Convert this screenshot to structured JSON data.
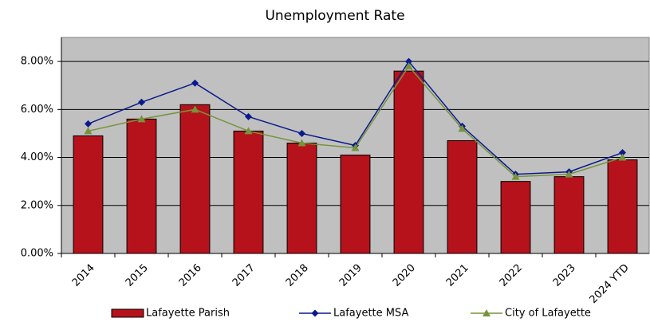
{
  "chart_data": {
    "type": "bar",
    "title": "Unemployment Rate",
    "categories": [
      "2014",
      "2015",
      "2016",
      "2017",
      "2018",
      "2019",
      "2020",
      "2021",
      "2022",
      "2023",
      "2024 YTD"
    ],
    "series": [
      {
        "name": "Lafayette Parish",
        "type": "bar",
        "color": "#b5121b",
        "values": [
          4.9,
          5.6,
          6.2,
          5.1,
          4.6,
          4.1,
          7.6,
          4.7,
          3.0,
          3.2,
          3.9
        ]
      },
      {
        "name": "Lafayette MSA",
        "type": "line",
        "marker": "diamond",
        "color": "#0a1a8c",
        "values": [
          5.4,
          6.3,
          7.1,
          5.7,
          5.0,
          4.5,
          8.0,
          5.3,
          3.3,
          3.4,
          4.2
        ]
      },
      {
        "name": "City of Lafayette",
        "type": "line",
        "marker": "triangle",
        "color": "#77933c",
        "values": [
          5.1,
          5.6,
          6.0,
          5.1,
          4.6,
          4.4,
          7.8,
          5.2,
          3.2,
          3.3,
          4.0
        ]
      }
    ],
    "ylim": [
      0,
      9
    ],
    "yticks": [
      {
        "value": 0,
        "label": "0.00%"
      },
      {
        "value": 2,
        "label": "2.00%"
      },
      {
        "value": 4,
        "label": "4.00%"
      },
      {
        "value": 6,
        "label": "6.00%"
      },
      {
        "value": 8,
        "label": "8.00%"
      }
    ],
    "grid": true,
    "legend": "bottom",
    "plot_background": "#c0c0c0"
  }
}
